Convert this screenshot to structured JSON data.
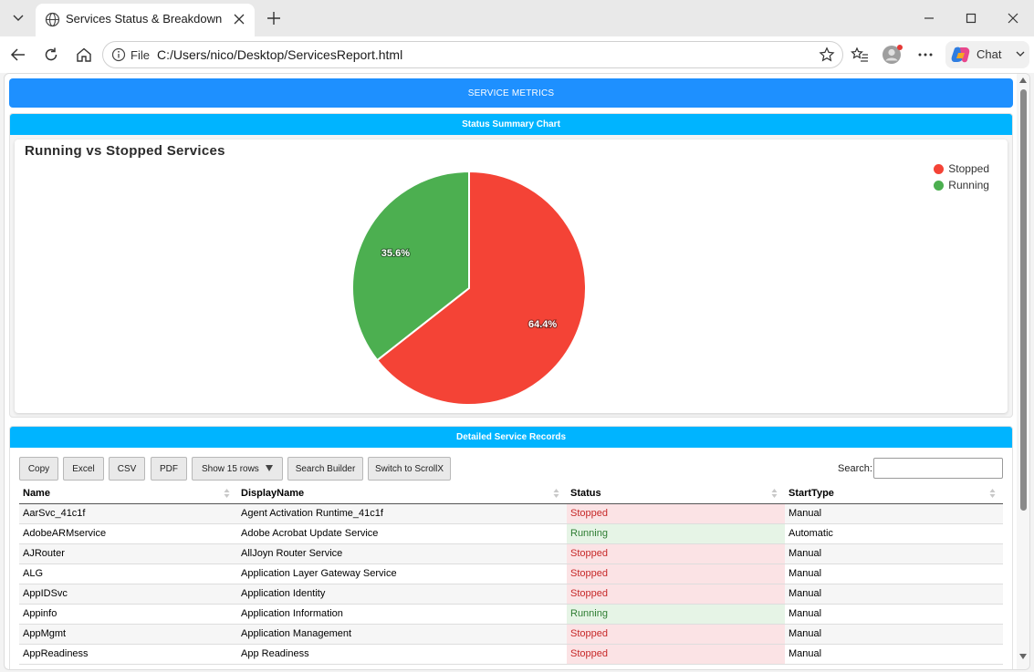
{
  "browser": {
    "tab_title": "Services Status & Breakdown",
    "scheme_label": "File",
    "url": "C:/Users/nico/Desktop/ServicesReport.html",
    "chat_label": "Chat"
  },
  "page": {
    "metrics_header": "SERVICE METRICS",
    "chart_panel_title": "Status Summary Chart",
    "records_panel_title": "Detailed Service Records"
  },
  "colors": {
    "stopped": "#f44336",
    "running": "#4caf50",
    "header_blue": "#1e90ff",
    "panel_cyan": "#00b4ff"
  },
  "chart_data": {
    "type": "pie",
    "title": "Running vs Stopped Services",
    "series": [
      {
        "name": "Stopped",
        "value": 64.4,
        "label": "64.4%",
        "color": "#f44336"
      },
      {
        "name": "Running",
        "value": 35.6,
        "label": "35.6%",
        "color": "#4caf50"
      }
    ],
    "legend_position": "top-right"
  },
  "toolbar": {
    "copy": "Copy",
    "excel": "Excel",
    "csv": "CSV",
    "pdf": "PDF",
    "show_rows": "Show 15 rows",
    "search_builder": "Search Builder",
    "switch_scroll": "Switch to ScrollX",
    "search_label": "Search:"
  },
  "table": {
    "columns": [
      "Name",
      "DisplayName",
      "Status",
      "StartType"
    ],
    "rows": [
      [
        "AarSvc_41c1f",
        "Agent Activation Runtime_41c1f",
        "Stopped",
        "Manual"
      ],
      [
        "AdobeARMservice",
        "Adobe Acrobat Update Service",
        "Running",
        "Automatic"
      ],
      [
        "AJRouter",
        "AllJoyn Router Service",
        "Stopped",
        "Manual"
      ],
      [
        "ALG",
        "Application Layer Gateway Service",
        "Stopped",
        "Manual"
      ],
      [
        "AppIDSvc",
        "Application Identity",
        "Stopped",
        "Manual"
      ],
      [
        "Appinfo",
        "Application Information",
        "Running",
        "Manual"
      ],
      [
        "AppMgmt",
        "Application Management",
        "Stopped",
        "Manual"
      ],
      [
        "AppReadiness",
        "App Readiness",
        "Stopped",
        "Manual"
      ]
    ]
  }
}
